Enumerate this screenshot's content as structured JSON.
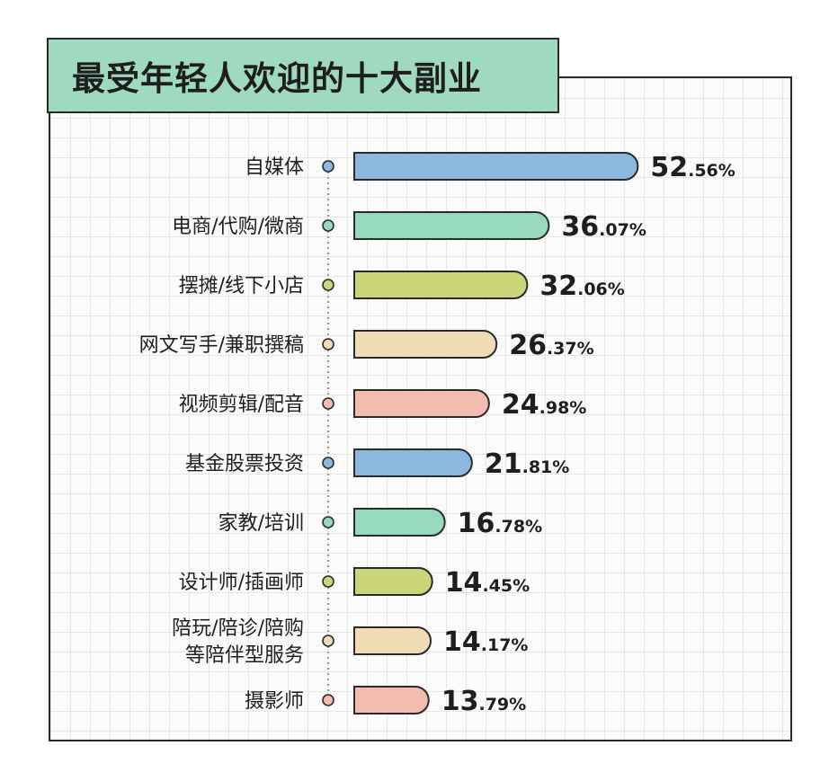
{
  "colors": {
    "blue": "#8cb8df",
    "green": "#97d9bc",
    "olive": "#cbd67a",
    "beige": "#f0dcb4",
    "pink": "#f2bcae",
    "title_bg": "#9fd9c0",
    "outline": "#2a2a2a"
  },
  "chart_data": {
    "type": "bar",
    "orientation": "horizontal",
    "title": "最受年轻人欢迎的十大副业",
    "xlabel": "",
    "ylabel": "",
    "unit": "%",
    "grid": true,
    "categories": [
      [
        "自媒体"
      ],
      [
        "电商/代购/微商"
      ],
      [
        "摆摊/线下小店"
      ],
      [
        "网文写手/兼职撰稿"
      ],
      [
        "视频剪辑/配音"
      ],
      [
        "基金股票投资"
      ],
      [
        "家教/培训"
      ],
      [
        "设计师/插画师"
      ],
      [
        "陪玩/陪诊/陪购",
        "等陪伴型服务"
      ],
      [
        "摄影师"
      ]
    ],
    "values": [
      52.56,
      36.07,
      32.06,
      26.37,
      24.98,
      21.81,
      16.78,
      14.45,
      14.17,
      13.79
    ],
    "value_labels": [
      [
        "52",
        ".56%"
      ],
      [
        "36",
        ".07%"
      ],
      [
        "32",
        ".06%"
      ],
      [
        "26",
        ".37%"
      ],
      [
        "24",
        ".98%"
      ],
      [
        "21",
        ".81%"
      ],
      [
        "16",
        ".78%"
      ],
      [
        "14",
        ".45%"
      ],
      [
        "14",
        ".17%"
      ],
      [
        "13",
        ".79%"
      ]
    ],
    "bar_colors": [
      "#8cb8df",
      "#97d9bc",
      "#cbd67a",
      "#f0dcb4",
      "#f2bcae",
      "#8cb8df",
      "#97d9bc",
      "#cbd67a",
      "#f0dcb4",
      "#f2bcae"
    ]
  }
}
